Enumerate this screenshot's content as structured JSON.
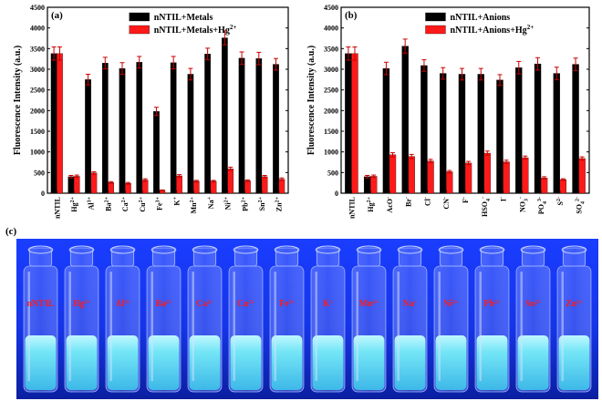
{
  "panel_c_label": "(c)",
  "photo_labels": [
    "nNTIL",
    "Hg2+",
    "Al3+",
    "Ba2+",
    "Ca2+",
    "Cu2+",
    "Fe3+",
    "K+",
    "Mn2+",
    "Na+",
    "Ni2+",
    "Pb2+",
    "Sn2+",
    "Zn2+"
  ],
  "colors": {
    "series_black": "#000000",
    "series_red": "#ff1a1a",
    "error_bar": "#cc0000",
    "label_red": "#ff1a1a",
    "uv_bg": "#1030ff"
  },
  "chart_data": [
    {
      "type": "bar",
      "panel_label": "(a)",
      "ylabel": "Fluorescence Intensity (a.u.)",
      "ylim": [
        0,
        4500
      ],
      "yticks": [
        0,
        500,
        1000,
        1500,
        2000,
        2500,
        3000,
        3500,
        4000,
        4500
      ],
      "legend_position": "top-right",
      "categories": [
        "nNTIL",
        "Hg2+",
        "Al3+",
        "Ba2+",
        "Ca2+",
        "Cu2+",
        "Fe3+",
        "K+",
        "Mn2+",
        "Na+",
        "Ni2+",
        "Pb2+",
        "Sn2+",
        "Zn2+"
      ],
      "series": [
        {
          "name": "nNTIL+Metals",
          "values": [
            3380,
            400,
            2750,
            3150,
            3020,
            3170,
            1980,
            3160,
            2880,
            3370,
            3760,
            3270,
            3260,
            3120
          ],
          "errors": [
            160,
            30,
            130,
            140,
            140,
            140,
            100,
            150,
            140,
            140,
            170,
            150,
            150,
            140
          ]
        },
        {
          "name": "nNTIL+Metals+Hg2+",
          "values": [
            3380,
            410,
            490,
            260,
            240,
            320,
            70,
            420,
            290,
            290,
            590,
            300,
            400,
            340
          ],
          "errors": [
            160,
            30,
            30,
            20,
            20,
            30,
            10,
            30,
            20,
            20,
            40,
            20,
            30,
            30
          ]
        }
      ]
    },
    {
      "type": "bar",
      "panel_label": "(b)",
      "ylabel": "Fluorescence Intensity (a.u.)",
      "ylim": [
        0,
        4500
      ],
      "yticks": [
        0,
        500,
        1000,
        1500,
        2000,
        2500,
        3000,
        3500,
        4000,
        4500
      ],
      "legend_position": "top-right",
      "categories": [
        "nNTIL",
        "Hg2+",
        "AcO-",
        "Br-",
        "Cl-",
        "CN-",
        "F-",
        "HSO4-",
        "I-",
        "NO3-",
        "PO43-",
        "S2-",
        "SO42-"
      ],
      "series": [
        {
          "name": "nNTIL+Anions",
          "values": [
            3380,
            400,
            3020,
            3560,
            3090,
            2900,
            2880,
            2880,
            2740,
            3040,
            3130,
            2900,
            3120
          ],
          "errors": [
            160,
            30,
            150,
            170,
            140,
            140,
            140,
            140,
            130,
            150,
            150,
            150,
            150
          ]
        },
        {
          "name": "nNTIL+Anions+Hg2+",
          "values": [
            3380,
            410,
            930,
            890,
            780,
            520,
            730,
            970,
            760,
            860,
            370,
            330,
            840
          ],
          "errors": [
            160,
            30,
            50,
            50,
            40,
            30,
            40,
            50,
            40,
            40,
            30,
            20,
            40
          ]
        }
      ]
    }
  ]
}
